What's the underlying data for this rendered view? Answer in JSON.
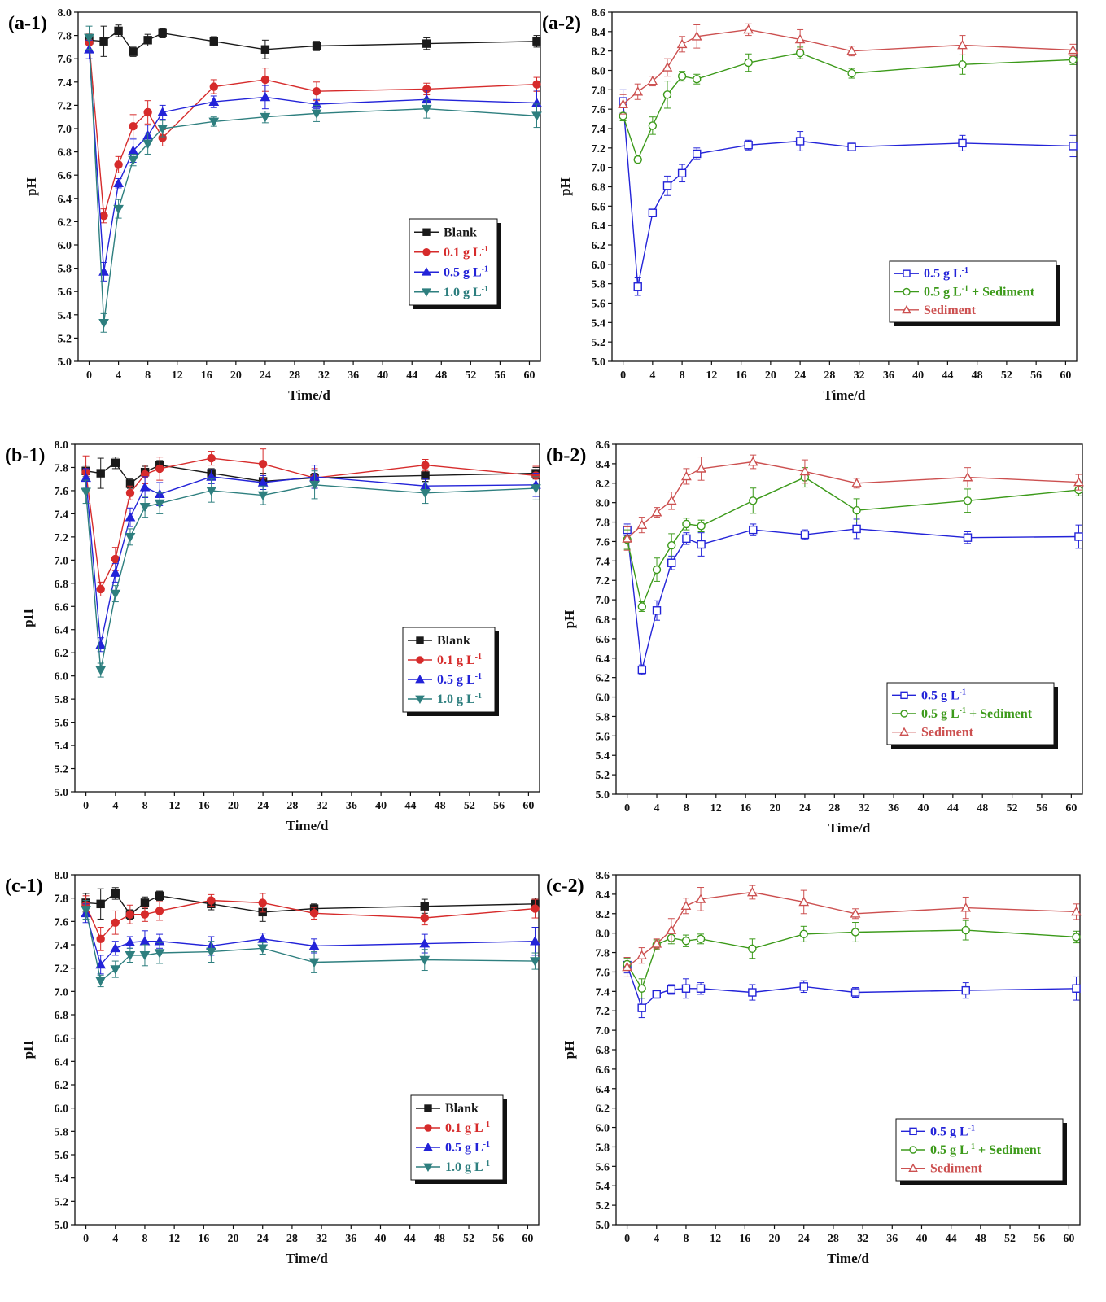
{
  "colors": {
    "blank": "#1a1a1a",
    "c01": "#d62b2b",
    "c05": "#2323d8",
    "c10": "#2e7f7f",
    "green": "#3c9a1a",
    "sediment": "#cc5050"
  },
  "chart_data": [
    {
      "panel": "(a-1)",
      "type": "line",
      "xlabel": "Time/d",
      "ylabel": "pH",
      "xlim": [
        -1.5,
        61.5
      ],
      "ylim": [
        5.0,
        8.0
      ],
      "xstep": 4,
      "ystep": 0.2,
      "x": [
        0,
        2,
        4,
        6,
        8,
        10,
        17,
        24,
        31,
        46,
        61
      ],
      "legend": {
        "position": "center-right"
      },
      "series": [
        {
          "name": "Blank",
          "color_key": "blank",
          "marker": "square",
          "filled": true,
          "values": [
            7.76,
            7.75,
            7.84,
            7.66,
            7.76,
            7.82,
            7.75,
            7.68,
            7.71,
            7.73,
            7.75
          ],
          "errors": [
            0.05,
            0.13,
            0.05,
            0.04,
            0.05,
            0.04,
            0.04,
            0.08,
            0.04,
            0.05,
            0.05
          ]
        },
        {
          "name": "0.1 g L-1",
          "color_key": "c01",
          "marker": "circle",
          "filled": true,
          "values": [
            7.74,
            6.25,
            6.69,
            7.02,
            7.14,
            6.92,
            7.36,
            7.42,
            7.32,
            7.34,
            7.38
          ],
          "errors": [
            0.08,
            0.06,
            0.07,
            0.1,
            0.1,
            0.07,
            0.06,
            0.1,
            0.08,
            0.05,
            0.06
          ]
        },
        {
          "name": "0.5 g L-1",
          "color_key": "c05",
          "marker": "triangle-up",
          "filled": true,
          "values": [
            7.68,
            5.77,
            6.53,
            6.81,
            6.94,
            7.14,
            7.23,
            7.27,
            7.21,
            7.25,
            7.22
          ],
          "errors": [
            0.08,
            0.08,
            0.04,
            0.1,
            0.09,
            0.06,
            0.05,
            0.1,
            0.04,
            0.08,
            0.11
          ]
        },
        {
          "name": "1.0 g L-1",
          "color_key": "c10",
          "marker": "triangle-down",
          "filled": true,
          "values": [
            7.78,
            5.33,
            6.31,
            6.73,
            6.87,
            7.0,
            7.06,
            7.1,
            7.13,
            7.17,
            7.11
          ],
          "errors": [
            0.1,
            0.08,
            0.08,
            0.05,
            0.09,
            0.07,
            0.04,
            0.05,
            0.07,
            0.08,
            0.1
          ]
        }
      ]
    },
    {
      "panel": "(a-2)",
      "type": "line",
      "xlabel": "Time/d",
      "ylabel": "pH",
      "xlim": [
        -1.5,
        61.5
      ],
      "ylim": [
        5.0,
        8.6
      ],
      "xstep": 4,
      "ystep": 0.2,
      "x": [
        0,
        2,
        4,
        6,
        8,
        10,
        17,
        24,
        31,
        46,
        61
      ],
      "legend": {
        "position": "lower-right"
      },
      "series": [
        {
          "name": "0.5 g L-1",
          "color_key": "c05",
          "marker": "square",
          "filled": false,
          "values": [
            7.68,
            5.77,
            6.53,
            6.81,
            6.94,
            7.14,
            7.23,
            7.27,
            7.21,
            7.25,
            7.22
          ],
          "errors": [
            0.12,
            0.09,
            0.04,
            0.1,
            0.09,
            0.06,
            0.05,
            0.1,
            0.04,
            0.08,
            0.11
          ]
        },
        {
          "name": "0.5 g L-1 + Sediment",
          "color_key": "green",
          "marker": "circle",
          "filled": false,
          "values": [
            7.53,
            7.08,
            7.43,
            7.75,
            7.94,
            7.91,
            8.08,
            8.18,
            7.97,
            8.06,
            8.11
          ],
          "errors": [
            0.05,
            0.03,
            0.09,
            0.14,
            0.05,
            0.05,
            0.09,
            0.06,
            0.05,
            0.1,
            0.05
          ]
        },
        {
          "name": "Sediment",
          "color_key": "sediment",
          "marker": "triangle-up",
          "filled": false,
          "values": [
            7.65,
            7.78,
            7.89,
            8.03,
            8.27,
            8.35,
            8.42,
            8.32,
            8.2,
            8.26,
            8.21
          ],
          "errors": [
            0.1,
            0.08,
            0.05,
            0.09,
            0.08,
            0.12,
            0.06,
            0.1,
            0.05,
            0.1,
            0.06
          ]
        }
      ]
    },
    {
      "panel": "(b-1)",
      "type": "line",
      "xlabel": "Time/d",
      "ylabel": "pH",
      "xlim": [
        -1.5,
        61.5
      ],
      "ylim": [
        5.0,
        8.0
      ],
      "xstep": 4,
      "ystep": 0.2,
      "x": [
        0,
        2,
        4,
        6,
        8,
        10,
        17,
        24,
        31,
        46,
        61
      ],
      "legend": {
        "position": "center-right"
      },
      "series": [
        {
          "name": "Blank",
          "color_key": "blank",
          "marker": "square",
          "filled": true,
          "values": [
            7.77,
            7.75,
            7.84,
            7.66,
            7.76,
            7.82,
            7.75,
            7.68,
            7.71,
            7.73,
            7.75
          ],
          "errors": [
            0.05,
            0.13,
            0.05,
            0.04,
            0.05,
            0.04,
            0.04,
            0.07,
            0.04,
            0.05,
            0.05
          ]
        },
        {
          "name": "0.1 g L-1",
          "color_key": "c01",
          "marker": "circle",
          "filled": true,
          "values": [
            7.76,
            6.75,
            7.01,
            7.58,
            7.74,
            7.79,
            7.88,
            7.83,
            7.71,
            7.82,
            7.73
          ],
          "errors": [
            0.14,
            0.06,
            0.1,
            0.06,
            0.08,
            0.1,
            0.06,
            0.13,
            0.08,
            0.05,
            0.08
          ]
        },
        {
          "name": "0.5 g L-1",
          "color_key": "c05",
          "marker": "triangle-up",
          "filled": true,
          "values": [
            7.71,
            6.27,
            6.89,
            7.37,
            7.63,
            7.57,
            7.72,
            7.67,
            7.72,
            7.64,
            7.65
          ],
          "errors": [
            0.08,
            0.06,
            0.08,
            0.08,
            0.09,
            0.1,
            0.06,
            0.06,
            0.1,
            0.06,
            0.1
          ]
        },
        {
          "name": "1.0 g L-1",
          "color_key": "c10",
          "marker": "triangle-down",
          "filled": true,
          "values": [
            7.59,
            6.05,
            6.71,
            7.2,
            7.46,
            7.49,
            7.6,
            7.56,
            7.65,
            7.58,
            7.62
          ],
          "errors": [
            0.1,
            0.06,
            0.07,
            0.07,
            0.09,
            0.09,
            0.1,
            0.08,
            0.12,
            0.09,
            0.1
          ]
        }
      ]
    },
    {
      "panel": "(b-2)",
      "type": "line",
      "xlabel": "Time/d",
      "ylabel": "pH",
      "xlim": [
        -1.5,
        61.5
      ],
      "ylim": [
        5.0,
        8.6
      ],
      "xstep": 4,
      "ystep": 0.2,
      "x": [
        0,
        2,
        4,
        6,
        8,
        10,
        17,
        24,
        31,
        46,
        61
      ],
      "legend": {
        "position": "lower-right"
      },
      "series": [
        {
          "name": "0.5 g L-1",
          "color_key": "c05",
          "marker": "square",
          "filled": false,
          "values": [
            7.72,
            6.28,
            6.89,
            7.38,
            7.63,
            7.57,
            7.72,
            7.67,
            7.73,
            7.64,
            7.65
          ],
          "errors": [
            0.06,
            0.05,
            0.1,
            0.07,
            0.06,
            0.12,
            0.06,
            0.05,
            0.1,
            0.06,
            0.12
          ]
        },
        {
          "name": "0.5 g L-1 + Sediment",
          "color_key": "green",
          "marker": "circle",
          "filled": false,
          "values": [
            7.62,
            6.93,
            7.31,
            7.56,
            7.78,
            7.76,
            8.02,
            8.26,
            7.92,
            8.02,
            8.13
          ],
          "errors": [
            0.1,
            0.05,
            0.12,
            0.12,
            0.06,
            0.06,
            0.13,
            0.1,
            0.12,
            0.12,
            0.06
          ]
        },
        {
          "name": "Sediment",
          "color_key": "sediment",
          "marker": "triangle-up",
          "filled": false,
          "values": [
            7.63,
            7.77,
            7.9,
            8.02,
            8.27,
            8.35,
            8.42,
            8.32,
            8.2,
            8.26,
            8.21
          ],
          "errors": [
            0.12,
            0.08,
            0.05,
            0.09,
            0.08,
            0.12,
            0.07,
            0.12,
            0.05,
            0.1,
            0.08
          ]
        }
      ]
    },
    {
      "panel": "(c-1)",
      "type": "line",
      "xlabel": "Time/d",
      "ylabel": "pH",
      "xlim": [
        -1.5,
        61.5
      ],
      "ylim": [
        5.0,
        8.0
      ],
      "xstep": 4,
      "ystep": 0.2,
      "x": [
        0,
        2,
        4,
        6,
        8,
        10,
        17,
        24,
        31,
        46,
        61
      ],
      "legend": {
        "position": "center-right"
      },
      "series": [
        {
          "name": "Blank",
          "color_key": "blank",
          "marker": "square",
          "filled": true,
          "values": [
            7.76,
            7.75,
            7.84,
            7.66,
            7.76,
            7.82,
            7.75,
            7.68,
            7.71,
            7.73,
            7.75
          ],
          "errors": [
            0.08,
            0.13,
            0.05,
            0.04,
            0.05,
            0.04,
            0.05,
            0.08,
            0.04,
            0.06,
            0.05
          ]
        },
        {
          "name": "0.1 g L-1",
          "color_key": "c01",
          "marker": "circle",
          "filled": true,
          "values": [
            7.74,
            7.45,
            7.59,
            7.66,
            7.66,
            7.69,
            7.78,
            7.76,
            7.67,
            7.63,
            7.71
          ],
          "errors": [
            0.08,
            0.1,
            0.1,
            0.08,
            0.06,
            0.08,
            0.05,
            0.08,
            0.05,
            0.06,
            0.08
          ]
        },
        {
          "name": "0.5 g L-1",
          "color_key": "c05",
          "marker": "triangle-up",
          "filled": true,
          "values": [
            7.67,
            7.23,
            7.37,
            7.42,
            7.43,
            7.43,
            7.39,
            7.45,
            7.39,
            7.41,
            7.43
          ],
          "errors": [
            0.08,
            0.08,
            0.06,
            0.05,
            0.09,
            0.06,
            0.08,
            0.05,
            0.06,
            0.08,
            0.12
          ]
        },
        {
          "name": "1.0 g L-1",
          "color_key": "c10",
          "marker": "triangle-down",
          "filled": true,
          "values": [
            7.7,
            7.09,
            7.19,
            7.31,
            7.31,
            7.33,
            7.34,
            7.37,
            7.25,
            7.27,
            7.26
          ],
          "errors": [
            0.08,
            0.05,
            0.07,
            0.06,
            0.09,
            0.09,
            0.09,
            0.05,
            0.09,
            0.09,
            0.07
          ]
        }
      ]
    },
    {
      "panel": "(c-2)",
      "type": "line",
      "xlabel": "Time/d",
      "ylabel": "pH",
      "xlim": [
        -1.5,
        61.5
      ],
      "ylim": [
        5.0,
        8.6
      ],
      "xstep": 4,
      "ystep": 0.2,
      "x": [
        0,
        2,
        4,
        6,
        8,
        10,
        17,
        24,
        31,
        46,
        61
      ],
      "legend": {
        "position": "lower-right"
      },
      "series": [
        {
          "name": "0.5 g L-1",
          "color_key": "c05",
          "marker": "square",
          "filled": false,
          "values": [
            7.67,
            7.23,
            7.37,
            7.42,
            7.43,
            7.43,
            7.39,
            7.45,
            7.39,
            7.41,
            7.43
          ],
          "errors": [
            0.08,
            0.1,
            0.04,
            0.05,
            0.1,
            0.06,
            0.08,
            0.06,
            0.05,
            0.08,
            0.12
          ]
        },
        {
          "name": "0.5 g L-1 + Sediment",
          "color_key": "green",
          "marker": "circle",
          "filled": false,
          "values": [
            7.68,
            7.43,
            7.88,
            7.95,
            7.92,
            7.94,
            7.84,
            7.99,
            8.01,
            8.03,
            7.96
          ],
          "errors": [
            0.06,
            0.1,
            0.05,
            0.06,
            0.06,
            0.05,
            0.1,
            0.08,
            0.1,
            0.1,
            0.06
          ]
        },
        {
          "name": "Sediment",
          "color_key": "sediment",
          "marker": "triangle-up",
          "filled": false,
          "values": [
            7.65,
            7.77,
            7.89,
            8.03,
            8.28,
            8.35,
            8.42,
            8.32,
            8.2,
            8.26,
            8.22
          ],
          "errors": [
            0.1,
            0.08,
            0.05,
            0.12,
            0.08,
            0.12,
            0.07,
            0.12,
            0.05,
            0.11,
            0.08
          ]
        }
      ]
    }
  ]
}
